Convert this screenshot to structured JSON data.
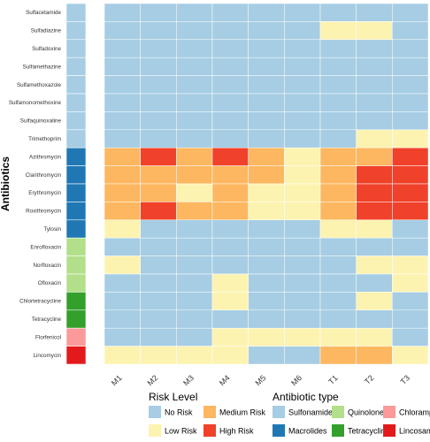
{
  "chart_data": {
    "type": "heatmap",
    "title": "",
    "xlabel": "",
    "ylabel": "Antibiotics",
    "x": [
      "M1",
      "M2",
      "M3",
      "M4",
      "M5",
      "M6",
      "T1",
      "T2",
      "T3"
    ],
    "y": [
      "Sulfacetamide",
      "Sulfadiazine",
      "Sulfadoxine",
      "Sulfamethazine",
      "Sulfamethoxazole",
      "Sulfamonomethoxine",
      "Sulfaquinoxaline",
      "Trimethoprim",
      "Azithromycin",
      "Clarithromycin",
      "Erythromycin",
      "Roxithromycin",
      "Tylosin",
      "Enrofloxacin",
      "Norfloxacin",
      "Ofloxacin",
      "Chlortetracycline",
      "Tetracycline",
      "Florfenicol",
      "Lincomycin"
    ],
    "antibiotic_type": [
      "Sulfonamides",
      "Sulfonamides",
      "Sulfonamides",
      "Sulfonamides",
      "Sulfonamides",
      "Sulfonamides",
      "Sulfonamides",
      "Sulfonamides",
      "Macrolides",
      "Macrolides",
      "Macrolides",
      "Macrolides",
      "Macrolides",
      "Quinolones",
      "Quinolones",
      "Quinolones",
      "Tetracyclines",
      "Tetracyclines",
      "Chloramphenicols",
      "Lincosamides"
    ],
    "risk_levels": [
      "No Risk",
      "Low Risk",
      "Medium Risk",
      "High Risk"
    ],
    "risk": [
      [
        0,
        0,
        0,
        0,
        0,
        0,
        0,
        0,
        0
      ],
      [
        0,
        0,
        0,
        0,
        0,
        0,
        1,
        1,
        0
      ],
      [
        0,
        0,
        0,
        0,
        0,
        0,
        0,
        0,
        0
      ],
      [
        0,
        0,
        0,
        0,
        0,
        0,
        0,
        0,
        0
      ],
      [
        0,
        0,
        0,
        0,
        0,
        0,
        0,
        0,
        0
      ],
      [
        0,
        0,
        0,
        0,
        0,
        0,
        0,
        0,
        0
      ],
      [
        0,
        0,
        0,
        0,
        0,
        0,
        0,
        0,
        0
      ],
      [
        0,
        0,
        0,
        0,
        0,
        0,
        0,
        1,
        1
      ],
      [
        2,
        3,
        2,
        3,
        2,
        1,
        2,
        2,
        3
      ],
      [
        2,
        2,
        2,
        2,
        2,
        1,
        2,
        3,
        3
      ],
      [
        2,
        2,
        1,
        2,
        1,
        1,
        2,
        3,
        3
      ],
      [
        2,
        3,
        2,
        2,
        1,
        1,
        2,
        3,
        3
      ],
      [
        1,
        0,
        0,
        0,
        0,
        0,
        1,
        1,
        0
      ],
      [
        0,
        0,
        0,
        0,
        0,
        0,
        0,
        0,
        0
      ],
      [
        1,
        0,
        0,
        0,
        0,
        0,
        0,
        1,
        1
      ],
      [
        0,
        0,
        0,
        1,
        0,
        0,
        0,
        0,
        1
      ],
      [
        0,
        0,
        0,
        1,
        0,
        0,
        0,
        1,
        0
      ],
      [
        0,
        0,
        0,
        0,
        0,
        0,
        0,
        0,
        0
      ],
      [
        0,
        0,
        0,
        1,
        1,
        1,
        1,
        1,
        0
      ],
      [
        1,
        1,
        1,
        1,
        0,
        0,
        2,
        2,
        1
      ]
    ],
    "legend": {
      "risk_title": "Risk Level",
      "type_title": "Antibiotic  type",
      "risk_items": [
        "No Risk",
        "Low Risk",
        "Medium Risk",
        "High Risk"
      ],
      "type_items": [
        "Sulfonamides",
        "Macrolides",
        "Quinolones",
        "Tetracyclines",
        "Chloramphenicols",
        "Lincosamides"
      ]
    },
    "colors": {
      "risk": {
        "No Risk": "#a6cde3",
        "Low Risk": "#fdf3b0",
        "Medium Risk": "#fdb760",
        "High Risk": "#f0412a"
      },
      "type": {
        "Sulfonamides": "#a6cde3",
        "Macrolides": "#1f78b4",
        "Quinolones": "#b2df8a",
        "Tetracyclines": "#33a02c",
        "Chloramphenicols": "#fb9a99",
        "Lincosamides": "#e31a1c"
      }
    },
    "grid": false,
    "legend_position": "bottom"
  }
}
